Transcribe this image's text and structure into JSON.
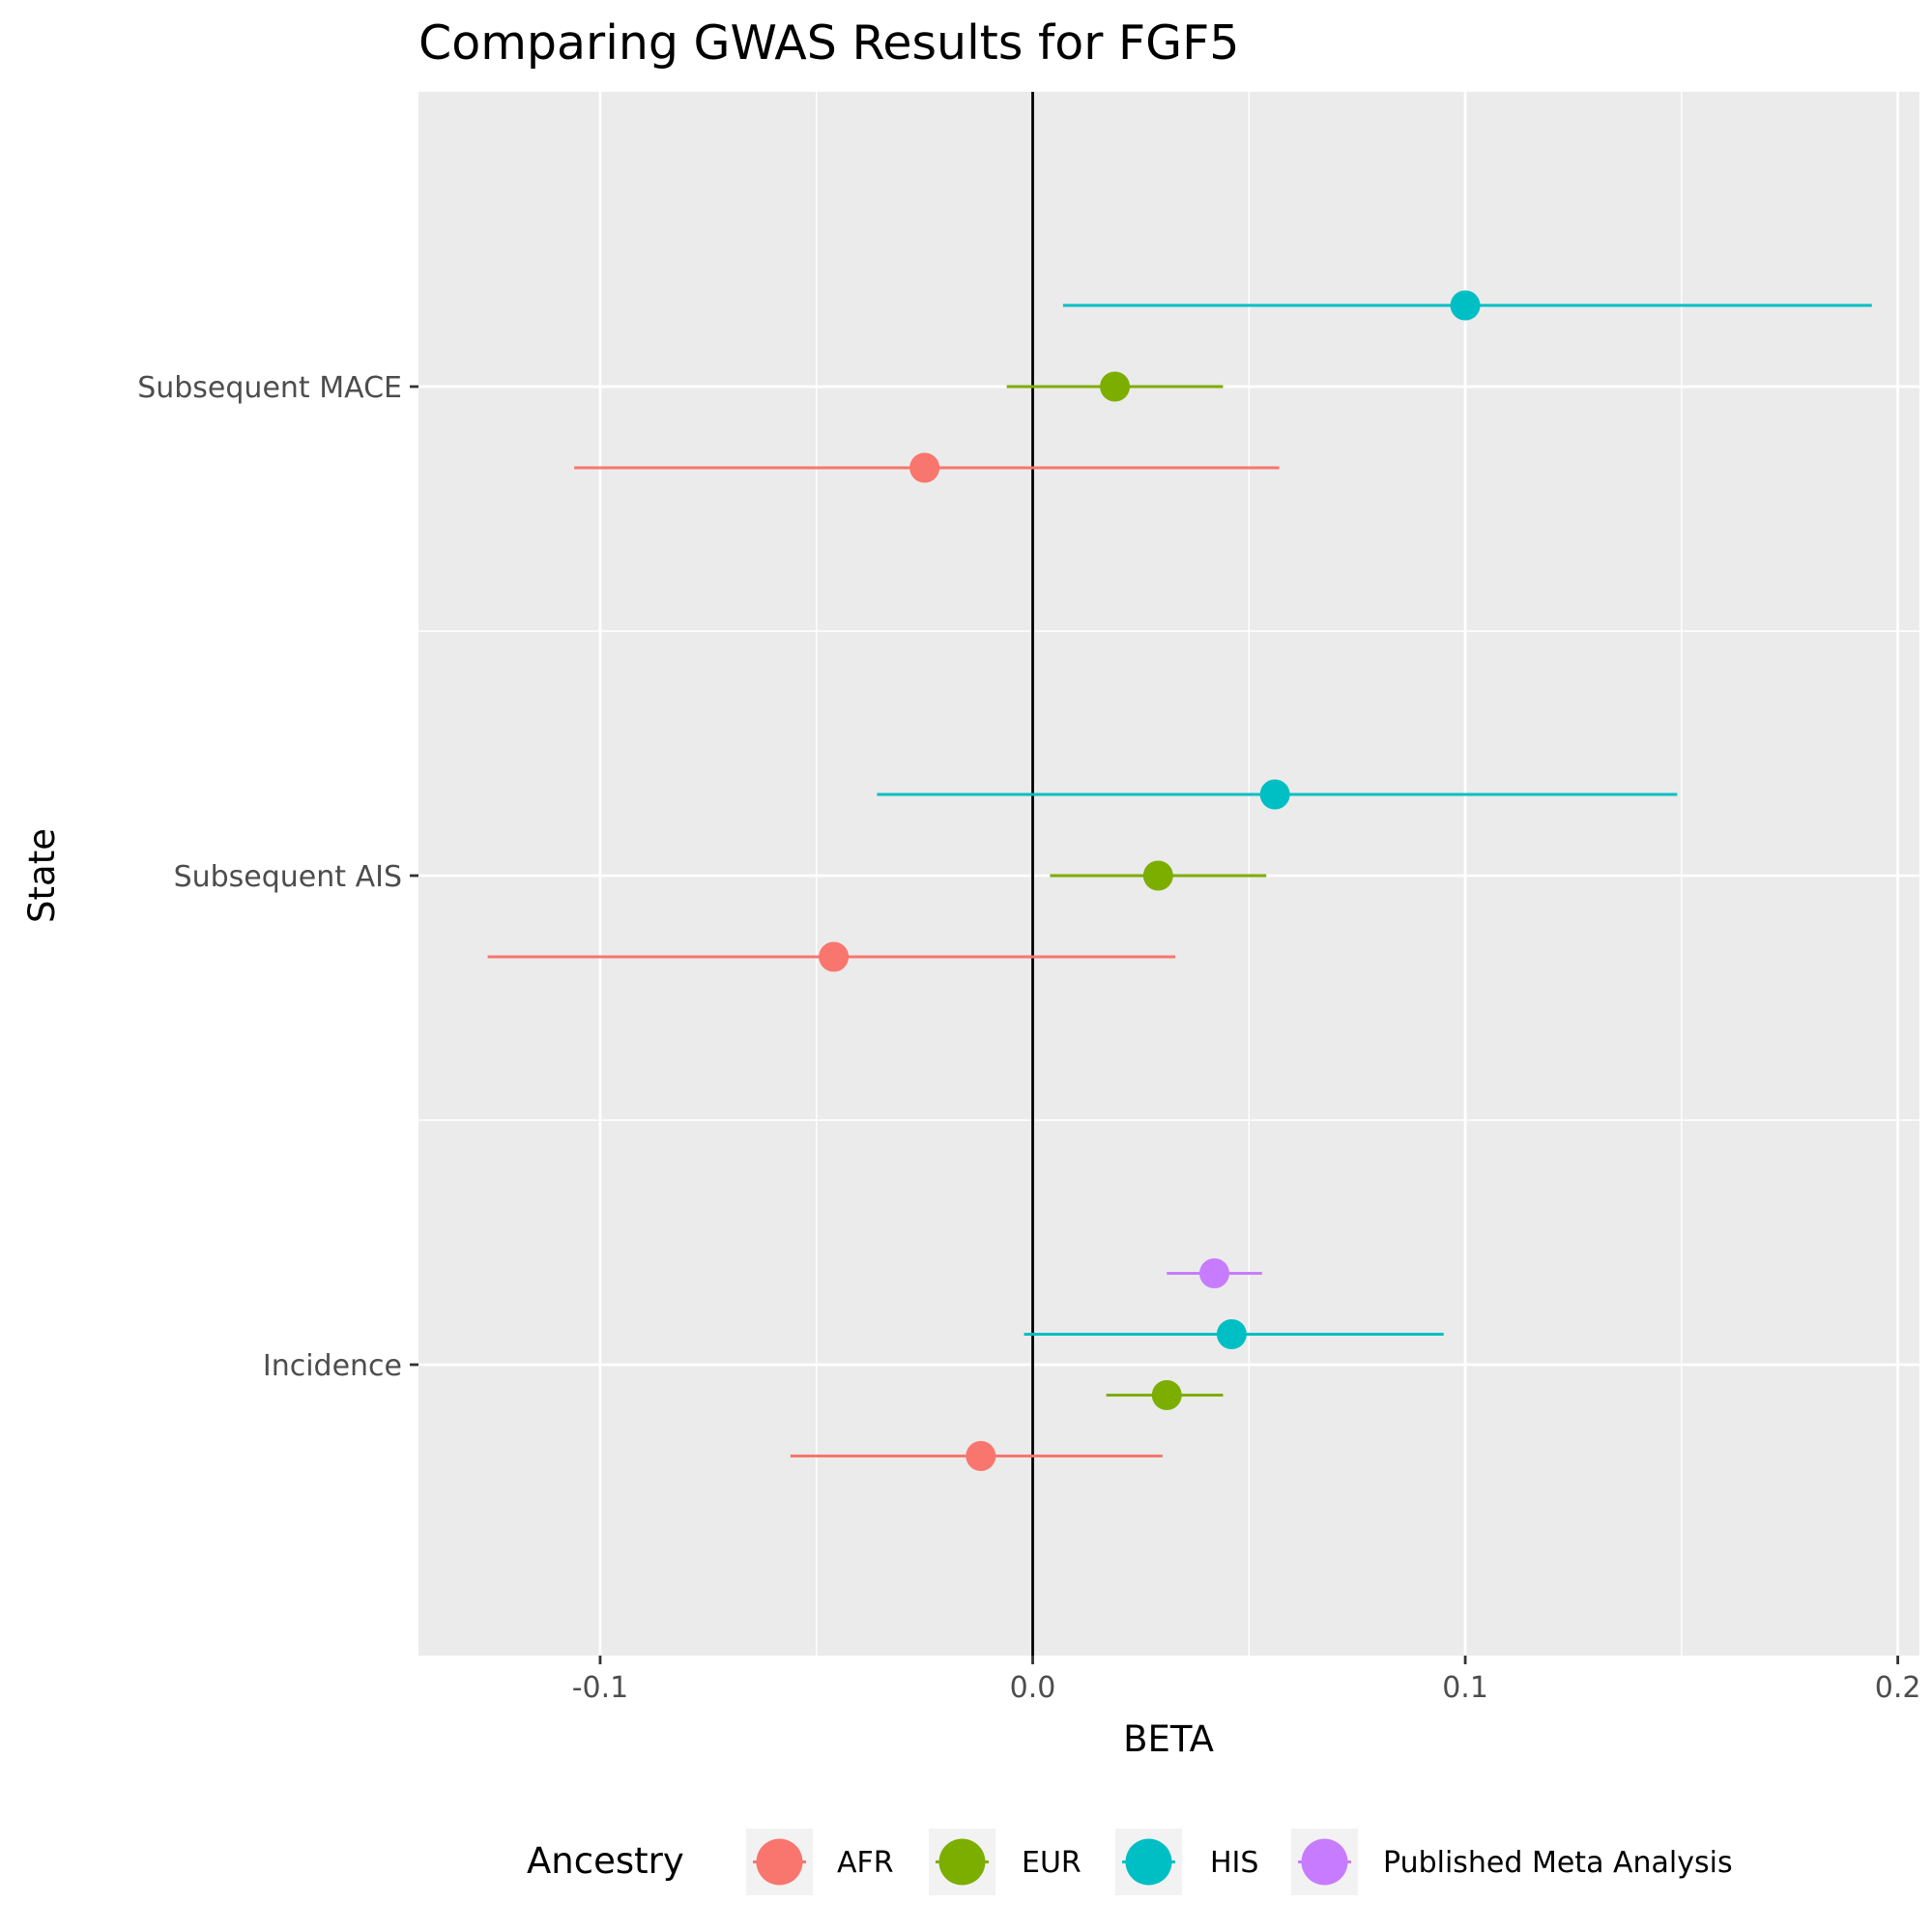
{
  "chart_data": {
    "type": "scatter",
    "subtype": "forest-plot",
    "title": "Comparing GWAS Results for FGF5",
    "xlabel": "BETA",
    "ylabel": "State",
    "xlim": [
      -0.142,
      0.205
    ],
    "x_ticks": [
      {
        "value": -0.1,
        "label": "-0.1"
      },
      {
        "value": 0.0,
        "label": "0.0"
      },
      {
        "value": 0.1,
        "label": "0.1"
      },
      {
        "value": 0.2,
        "label": "0.2"
      }
    ],
    "categories": [
      "Subsequent MACE",
      "Subsequent AIS",
      "Incidence"
    ],
    "reference_line": 0,
    "grid": true,
    "legend": {
      "title": "Ancestry",
      "position": "bottom"
    },
    "series": [
      {
        "name": "AFR",
        "color": "#F8766D",
        "points": [
          {
            "category": "Subsequent MACE",
            "beta": -0.025,
            "lower": -0.106,
            "upper": 0.057
          },
          {
            "category": "Subsequent AIS",
            "beta": -0.046,
            "lower": -0.126,
            "upper": 0.033
          },
          {
            "category": "Incidence",
            "beta": -0.012,
            "lower": -0.056,
            "upper": 0.03
          }
        ]
      },
      {
        "name": "EUR",
        "color": "#7CAE00",
        "points": [
          {
            "category": "Subsequent MACE",
            "beta": 0.019,
            "lower": -0.006,
            "upper": 0.044
          },
          {
            "category": "Subsequent AIS",
            "beta": 0.029,
            "lower": 0.004,
            "upper": 0.054
          },
          {
            "category": "Incidence",
            "beta": 0.031,
            "lower": 0.017,
            "upper": 0.044
          }
        ]
      },
      {
        "name": "HIS",
        "color": "#00BFC4",
        "points": [
          {
            "category": "Subsequent MACE",
            "beta": 0.1,
            "lower": 0.007,
            "upper": 0.194
          },
          {
            "category": "Subsequent AIS",
            "beta": 0.056,
            "lower": -0.036,
            "upper": 0.149
          },
          {
            "category": "Incidence",
            "beta": 0.046,
            "lower": -0.002,
            "upper": 0.095
          }
        ]
      },
      {
        "name": "Published Meta Analysis",
        "color": "#C77CFF",
        "points": [
          {
            "category": "Incidence",
            "beta": 0.042,
            "lower": 0.031,
            "upper": 0.053
          }
        ]
      }
    ]
  }
}
